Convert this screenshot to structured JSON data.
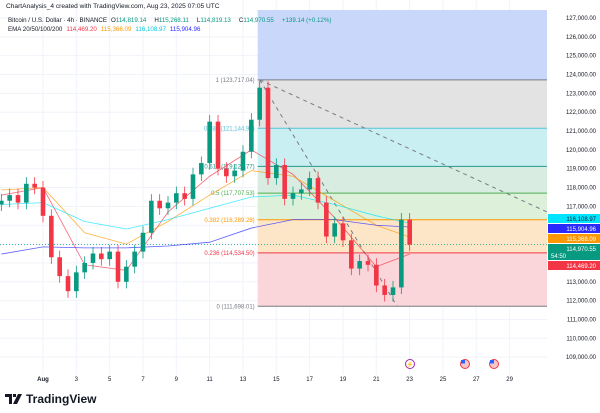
{
  "header": {
    "created": "ChartAnalysis_4 created with TradingView.com, Aug 23, 2025 07:05 UTC"
  },
  "legend": {
    "symbol": "Bitcoin / U.S. Dollar · 4h · BINANCE",
    "open_label": "O",
    "open": "114,819.14",
    "high_label": "H",
    "high": "115,268.11",
    "low_label": "L",
    "low": "114,819.13",
    "close_label": "C",
    "close": "114,970.55",
    "change": "+139.14 (+0.12%)",
    "ema_label": "EMA 20/50/100/200",
    "ema20": "114,469.20",
    "ema50": "115,368.09",
    "ema100": "116,108.97",
    "ema200": "115,904.96"
  },
  "footer": {
    "brand": "TradingView"
  },
  "colors": {
    "up": "#089981",
    "down": "#f23645",
    "ema20": "#f23645",
    "ema50": "#ff9800",
    "ema100": "#00e5ff",
    "ema200": "#2a2aff"
  },
  "events": [
    {
      "date": "23",
      "icon": "lightning-icon",
      "color": "#9c27b0"
    },
    {
      "date": "26-27",
      "icon": "us-flag-icon"
    },
    {
      "date": "28-29",
      "icon": "us-flag-icon"
    }
  ],
  "chart_data": {
    "type": "candlestick",
    "interval_shown": "4h",
    "ylim": [
      108500,
      127500
    ],
    "y_ticks": [
      "127,000.00",
      "126,000.00",
      "125,000.00",
      "124,000.00",
      "123,000.00",
      "122,000.00",
      "121,000.00",
      "120,000.00",
      "119,000.00",
      "118,000.00",
      "117,000.00",
      "113,000.00",
      "112,000.00",
      "111,000.00",
      "110,000.00",
      "109,000.00"
    ],
    "x_ticks": [
      "Aug",
      "3",
      "5",
      "7",
      "9",
      "11",
      "13",
      "15",
      "17",
      "19",
      "21",
      "23",
      "25",
      "27",
      "29"
    ],
    "times": [
      "Jul 29 12:00",
      "Jul 30 00:00",
      "Jul 30 12:00",
      "Jul 31 00:00",
      "Jul 31 12:00",
      "Aug 1 00:00",
      "Aug 1 12:00",
      "Aug 2 00:00",
      "Aug 2 12:00",
      "Aug 3 00:00",
      "Aug 3 12:00",
      "Aug 4 00:00",
      "Aug 4 12:00",
      "Aug 5 00:00",
      "Aug 5 12:00",
      "Aug 6 00:00",
      "Aug 6 12:00",
      "Aug 7 00:00",
      "Aug 7 12:00",
      "Aug 8 00:00",
      "Aug 8 12:00",
      "Aug 9 00:00",
      "Aug 9 12:00",
      "Aug 10 00:00",
      "Aug 10 12:00",
      "Aug 11 00:00",
      "Aug 11 12:00",
      "Aug 12 00:00",
      "Aug 12 12:00",
      "Aug 13 00:00",
      "Aug 13 12:00",
      "Aug 14 00:00",
      "Aug 14 12:00",
      "Aug 15 00:00",
      "Aug 15 12:00",
      "Aug 16 00:00",
      "Aug 16 12:00",
      "Aug 17 00:00",
      "Aug 17 12:00",
      "Aug 18 00:00",
      "Aug 18 12:00",
      "Aug 19 00:00",
      "Aug 19 12:00",
      "Aug 20 00:00",
      "Aug 20 12:00",
      "Aug 21 00:00",
      "Aug 21 12:00",
      "Aug 22 00:00",
      "Aug 22 12:00",
      "Aug 23 00:00"
    ],
    "close": [
      117300,
      117600,
      117200,
      118200,
      118000,
      116500,
      114300,
      113300,
      112500,
      113500,
      114000,
      114500,
      114200,
      114600,
      113000,
      113800,
      114600,
      115600,
      117300,
      116900,
      117200,
      117700,
      117400,
      118700,
      119300,
      121500,
      119000,
      118600,
      118900,
      119900,
      121600,
      123300,
      118500,
      119200,
      117400,
      117700,
      117900,
      118500,
      117200,
      115400,
      116100,
      115200,
      113700,
      114100,
      113900,
      112800,
      112300,
      112700,
      116300,
      114970.55
    ],
    "ema_times": [
      "Jul 29 12:00",
      "Aug 1 00:00",
      "Aug 3 12:00",
      "Aug 6 00:00",
      "Aug 8 12:00",
      "Aug 11 00:00",
      "Aug 13 12:00",
      "Aug 16 00:00",
      "Aug 18 12:00",
      "Aug 21 00:00",
      "Aug 23 00:00"
    ],
    "series": [
      {
        "name": "EMA 20",
        "values": [
          117600,
          118000,
          113900,
          113600,
          116700,
          118600,
          120000,
          118700,
          116400,
          113800,
          114469.2
        ]
      },
      {
        "name": "EMA 50",
        "values": [
          117870,
          118000,
          115600,
          115000,
          116200,
          117600,
          118900,
          118600,
          117300,
          116000,
          115368.09
        ]
      },
      {
        "name": "EMA 100",
        "values": [
          117100,
          117200,
          116200,
          115800,
          116300,
          116900,
          117500,
          117600,
          117100,
          116500,
          116108.97
        ]
      },
      {
        "name": "EMA 200",
        "values": [
          114470,
          114850,
          114800,
          114800,
          114900,
          115100,
          115850,
          116300,
          116300,
          116000,
          115904.96
        ]
      }
    ],
    "fibonacci": {
      "levels": [
        {
          "ratio": "1",
          "price": 123717.04,
          "label": "1 (123,717.04)",
          "color": "#787b86"
        },
        {
          "ratio": "0.786",
          "price": 121144.97,
          "label": "0.786 (121,144.97)",
          "color": "#56c3d6"
        },
        {
          "ratio": "0.618",
          "price": 119125.77,
          "label": "0.618 (119,125.77)",
          "color": "#22998c"
        },
        {
          "ratio": "0.5",
          "price": 117707.53,
          "label": "0.5 (117,707.53)",
          "color": "#4caf50"
        },
        {
          "ratio": "0.382",
          "price": 116289.28,
          "label": "0.382 (116,289.28)",
          "color": "#ff9800"
        },
        {
          "ratio": "0.236",
          "price": 114534.5,
          "label": "0.236 (114,534.50)",
          "color": "#f23645"
        },
        {
          "ratio": "0",
          "price": 111698.01,
          "label": "0 (111,698.01)",
          "color": "#787b86"
        }
      ]
    },
    "trendlines": [
      {
        "from": [
          "Aug 14 00:00",
          123717.04
        ],
        "to": [
          "Aug 22 06:00",
          111698.01
        ]
      },
      {
        "from": [
          "Aug 14 00:00",
          123717.04
        ],
        "to": [
          "Aug 31 12:00",
          116600
        ]
      }
    ],
    "price_badges": [
      {
        "label": "116,108.97",
        "price": 116108.97,
        "color": "#00e5ff",
        "text": "#131722"
      },
      {
        "label": "115,904.96",
        "price": 115904.96,
        "color": "#2a2aff",
        "text": "#ffffff"
      },
      {
        "label": "115,368.09",
        "price": 115368.09,
        "color": "#ff9800",
        "text": "#ffffff"
      },
      {
        "label": "114,970.55",
        "sub": "54:50",
        "price": 114970.55,
        "color": "#089981",
        "text": "#ffffff"
      },
      {
        "label": "114,469.20",
        "price": 114469.2,
        "color": "#f23645",
        "text": "#ffffff"
      }
    ]
  }
}
